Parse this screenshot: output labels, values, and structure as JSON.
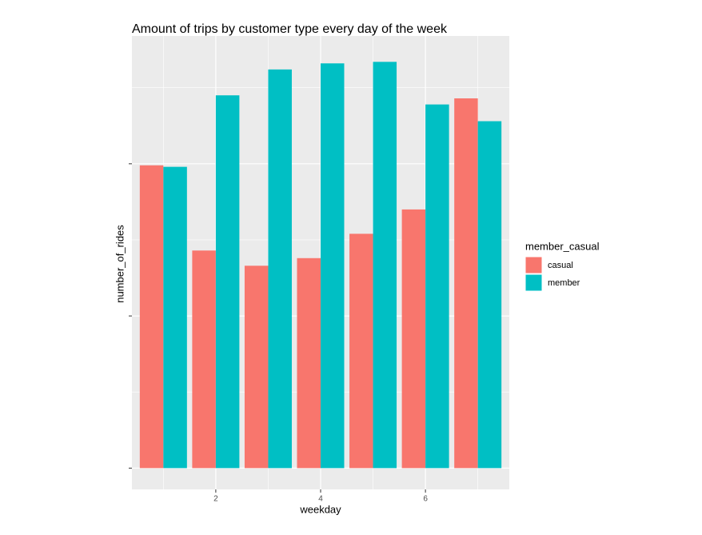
{
  "chart_data": {
    "type": "bar",
    "title": "Amount of trips by customer type every day of the week",
    "x_label": "weekday",
    "y_label": "number_of_rides",
    "legend_title": "member_casual",
    "x": [
      1,
      2,
      3,
      4,
      5,
      6,
      7
    ],
    "series": [
      {
        "name": "casual",
        "color": "#f8766d",
        "values": [
          1.99,
          1.43,
          1.33,
          1.38,
          1.54,
          1.7,
          2.43
        ]
      },
      {
        "name": "member",
        "color": "#00bfc4",
        "values": [
          1.98,
          2.45,
          2.62,
          2.66,
          2.67,
          2.39,
          2.28
        ]
      }
    ],
    "xlim": [
      0.4,
      7.6
    ],
    "xticks": [
      2,
      4,
      6
    ],
    "ylim": [
      -0.14,
      2.84
    ],
    "yticks": [
      0,
      1,
      2
    ],
    "grid": true
  }
}
